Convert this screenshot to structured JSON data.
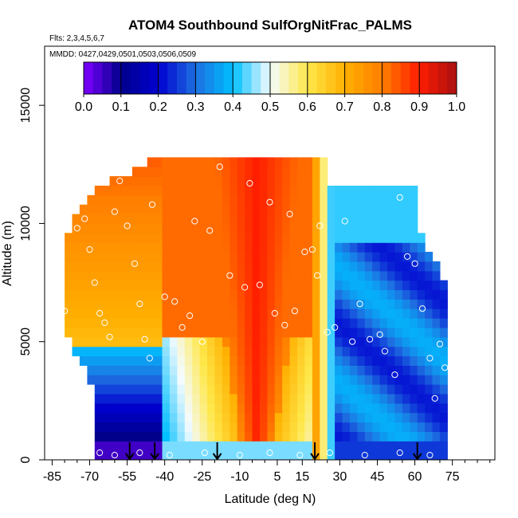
{
  "chart_data": {
    "type": "heatmap",
    "title": "ATOM4 Southbound SulfOrgNitFrac_PALMS",
    "flights_label": "Flts: 2,3,4,5,6,7",
    "mmdd_label": "MMDD: 0427,0429,0501,0503,0506,0509",
    "xlabel": "Latitude (deg N)",
    "ylabel": "Altitude (m)",
    "x_ticks": [
      -85,
      -70,
      -55,
      -40,
      -25,
      -10,
      5,
      15,
      30,
      45,
      60,
      75
    ],
    "x_tick_labels": [
      "-85",
      "-70",
      "-55",
      "-40",
      "-25",
      "-10",
      "5",
      "15",
      "30",
      "45",
      "60",
      "75"
    ],
    "y_ticks": [
      0,
      5000,
      10000,
      15000
    ],
    "y_tick_labels": [
      "0",
      "5000",
      "10000",
      "15000"
    ],
    "xlim": [
      -88,
      92
    ],
    "ylim": [
      0,
      17500
    ],
    "colorbar": {
      "ticks": [
        "0.0",
        "0.1",
        "0.2",
        "0.3",
        "0.4",
        "0.5",
        "0.6",
        "0.7",
        "0.8",
        "0.9",
        "1.0"
      ],
      "range": [
        0,
        1
      ],
      "colors": [
        "#7f00ff",
        "#00008b",
        "#0000d0",
        "#1e6fe0",
        "#00bfff",
        "#f4fbff",
        "#ffe84a",
        "#ffb000",
        "#ff7f00",
        "#ff1c00",
        "#a81010"
      ]
    },
    "profile_arrows_lat": [
      -54,
      -44,
      -19,
      20,
      61
    ],
    "scatter_points": [
      [
        -80,
        6300
      ],
      [
        -75,
        9800
      ],
      [
        -72,
        10200
      ],
      [
        -70,
        8900
      ],
      [
        -68,
        7500
      ],
      [
        -66,
        6200
      ],
      [
        -64,
        5800
      ],
      [
        -62,
        5200
      ],
      [
        -60,
        10500
      ],
      [
        -58,
        11800
      ],
      [
        -55,
        9900
      ],
      [
        -52,
        8300
      ],
      [
        -50,
        6600
      ],
      [
        -48,
        5100
      ],
      [
        -46,
        4300
      ],
      [
        -45,
        10800
      ],
      [
        -40,
        6900
      ],
      [
        -36,
        6700
      ],
      [
        -33,
        5600
      ],
      [
        -30,
        6100
      ],
      [
        -28,
        10100
      ],
      [
        -25,
        5000
      ],
      [
        -22,
        9700
      ],
      [
        -18,
        12400
      ],
      [
        -14,
        7800
      ],
      [
        -8,
        7300
      ],
      [
        -6,
        11700
      ],
      [
        -2,
        7400
      ],
      [
        2,
        10900
      ],
      [
        4,
        6200
      ],
      [
        8,
        5700
      ],
      [
        10,
        10400
      ],
      [
        12,
        6300
      ],
      [
        16,
        8800
      ],
      [
        19,
        8900
      ],
      [
        21,
        7800
      ],
      [
        22,
        9900
      ],
      [
        25,
        5400
      ],
      [
        28,
        5600
      ],
      [
        32,
        10100
      ],
      [
        35,
        5000
      ],
      [
        38,
        6600
      ],
      [
        42,
        5100
      ],
      [
        46,
        5300
      ],
      [
        48,
        4600
      ],
      [
        52,
        3600
      ],
      [
        54,
        11100
      ],
      [
        57,
        8600
      ],
      [
        60,
        8300
      ],
      [
        63,
        6400
      ],
      [
        66,
        4300
      ],
      [
        68,
        2600
      ],
      [
        70,
        4900
      ],
      [
        72,
        3900
      ],
      [
        -66,
        300
      ],
      [
        -60,
        200
      ],
      [
        -50,
        300
      ],
      [
        -38,
        200
      ],
      [
        -24,
        300
      ],
      [
        -10,
        200
      ],
      [
        2,
        300
      ],
      [
        14,
        200
      ],
      [
        26,
        300
      ],
      [
        40,
        200
      ],
      [
        54,
        300
      ],
      [
        66,
        200
      ]
    ]
  }
}
